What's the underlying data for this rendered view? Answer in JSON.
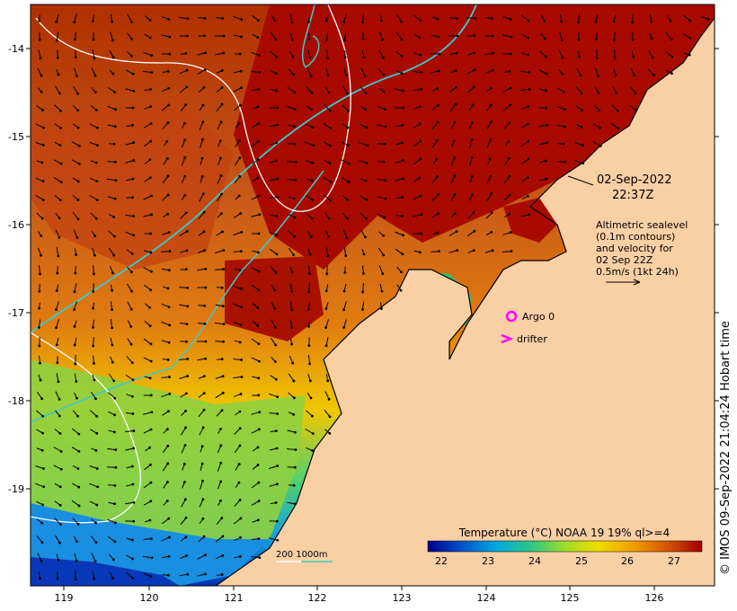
{
  "map": {
    "date_line1": "02-Sep-2022",
    "date_line2": "22:37Z",
    "note_lines": [
      "Altimetric sealevel",
      "(0.1m contours)",
      "and velocity for",
      "02 Sep 22Z",
      "0.5m/s (1kt 24h)"
    ],
    "legend_argo": "Argo 0",
    "legend_drifter": "drifter",
    "depth_scale_label": "200  1000m",
    "colorbar_title": "Temperature (°C) NOAA 19 19% ql>=4",
    "colorbar_ticks": [
      "22",
      "23",
      "24",
      "25",
      "26",
      "27"
    ],
    "x_ticks": [
      "119",
      "120",
      "121",
      "122",
      "123",
      "124",
      "125",
      "126"
    ],
    "y_ticks": [
      "-14",
      "-15",
      "-16",
      "-17",
      "-18",
      "-19"
    ],
    "side_label": "© IMOS 09-Sep-2022 21:04:24 Hobart time",
    "colors": {
      "land": "#f9cfa4",
      "argo": "#ff00ff",
      "drifter": "#ff00ff",
      "bathy_1000": "#40c8c8",
      "bathy_200": "#ffffff",
      "colormap": [
        "#00008b",
        "#0050c8",
        "#00a8e0",
        "#30c880",
        "#a0dc28",
        "#f0dc00",
        "#f0a000",
        "#d25000",
        "#a00000"
      ]
    }
  }
}
